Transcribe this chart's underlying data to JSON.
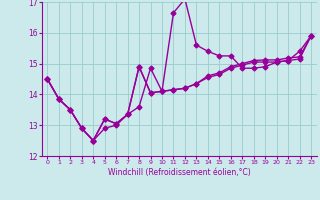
{
  "xlabel": "Windchill (Refroidissement éolien,°C)",
  "x_hours": [
    0,
    1,
    2,
    3,
    4,
    5,
    6,
    7,
    8,
    9,
    10,
    11,
    12,
    13,
    14,
    15,
    16,
    17,
    18,
    19,
    20,
    21,
    22,
    23
  ],
  "series1": [
    14.5,
    13.85,
    13.5,
    12.9,
    12.5,
    12.9,
    13.0,
    13.35,
    13.6,
    14.85,
    14.1,
    16.65,
    17.1,
    15.6,
    15.4,
    15.25,
    15.25,
    14.85,
    14.85,
    14.9,
    15.05,
    15.1,
    15.4,
    15.9
  ],
  "series2": [
    14.5,
    13.85,
    13.5,
    12.9,
    12.5,
    13.2,
    13.05,
    13.35,
    14.9,
    14.05,
    14.1,
    14.15,
    14.2,
    14.35,
    14.55,
    14.65,
    14.85,
    14.95,
    15.05,
    15.05,
    15.05,
    15.1,
    15.15,
    15.9
  ],
  "series3": [
    14.5,
    13.85,
    13.5,
    12.9,
    12.5,
    13.2,
    13.05,
    13.35,
    14.9,
    14.05,
    14.1,
    14.15,
    14.2,
    14.35,
    14.6,
    14.7,
    14.9,
    15.0,
    15.1,
    15.12,
    15.12,
    15.18,
    15.22,
    15.9
  ],
  "line_color": "#990099",
  "bg_color": "#cce9eb",
  "grid_color": "#99cccc",
  "ylim": [
    12,
    17
  ],
  "yticks": [
    12,
    13,
    14,
    15,
    16,
    17
  ],
  "xlim": [
    -0.5,
    23.5
  ],
  "marker": "D",
  "markersize": 2.5,
  "linewidth": 1.0
}
